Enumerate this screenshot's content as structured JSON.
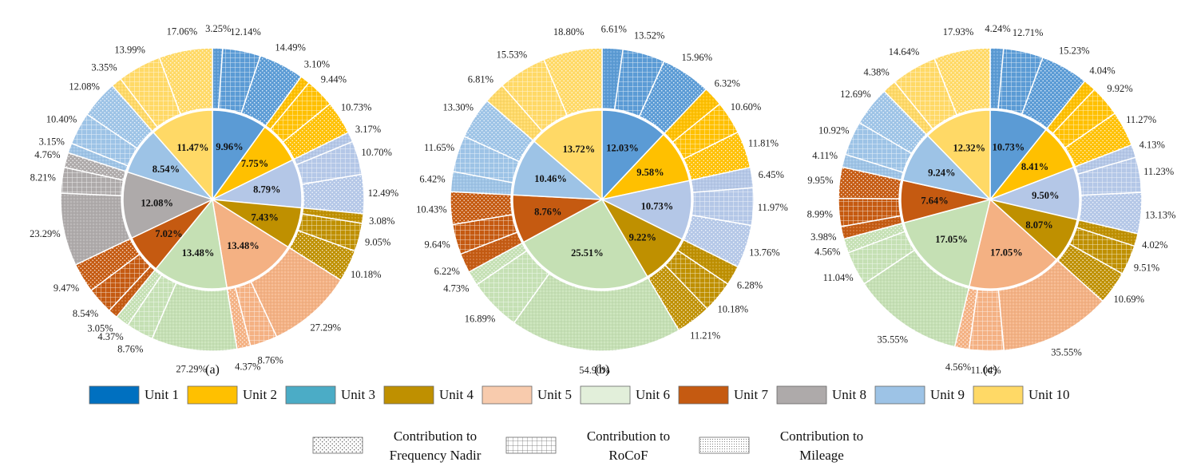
{
  "chart_data": [
    {
      "type": "pie",
      "panel_label": "(a)",
      "inner": [
        {
          "unit": "Unit 1",
          "value": 9.96,
          "label": "9.96%"
        },
        {
          "unit": "Unit 2",
          "value": 7.75,
          "label": "7.75%"
        },
        {
          "unit": "Unit 3",
          "value": 8.79,
          "label": "8.79%"
        },
        {
          "unit": "Unit 4",
          "value": 7.43,
          "label": "7.43%"
        },
        {
          "unit": "Unit 5",
          "value": 13.48,
          "label": "13.48%"
        },
        {
          "unit": "Unit 6",
          "value": 13.48,
          "label": "13.48%"
        },
        {
          "unit": "Unit 7",
          "value": 7.02,
          "label": "7.02%"
        },
        {
          "unit": "Unit 8",
          "value": 12.08,
          "label": "12.08%"
        },
        {
          "unit": "Unit 9",
          "value": 8.54,
          "label": "8.54%"
        },
        {
          "unit": "Unit 10",
          "value": 11.47,
          "label": "11.47%"
        }
      ],
      "outer": [
        {
          "unit": "Unit 1",
          "values": [
            3.25,
            12.14,
            14.49
          ],
          "labels": [
            "3.25%",
            "12.14%",
            "14.49%"
          ]
        },
        {
          "unit": "Unit 2",
          "values": [
            3.1,
            9.44,
            10.73
          ],
          "labels": [
            "3.10%",
            "9.44%",
            "10.73%"
          ]
        },
        {
          "unit": "Unit 3",
          "values": [
            3.17,
            10.7,
            12.49
          ],
          "labels": [
            "3.17%",
            "10.70%",
            "12.49%"
          ]
        },
        {
          "unit": "Unit 4",
          "values": [
            3.08,
            9.05,
            10.18
          ],
          "labels": [
            "3.08%",
            "9.05%",
            "10.18%"
          ]
        },
        {
          "unit": "Unit 5",
          "values": [
            27.29,
            8.76,
            4.37
          ],
          "labels": [
            "27.29%",
            "8.76%",
            "4.37%"
          ]
        },
        {
          "unit": "Unit 6",
          "values": [
            27.29,
            8.76,
            4.37
          ],
          "labels": [
            "27.29%",
            "8.76%",
            "4.37%"
          ]
        },
        {
          "unit": "Unit 7",
          "values": [
            3.05,
            8.54,
            9.47
          ],
          "labels": [
            "3.05%",
            "8.54%",
            "9.47%"
          ]
        },
        {
          "unit": "Unit 8",
          "values": [
            23.29,
            8.21,
            4.76
          ],
          "labels": [
            "23.29%",
            "8.21%",
            "4.76%"
          ]
        },
        {
          "unit": "Unit 9",
          "values": [
            3.15,
            10.4,
            12.08
          ],
          "labels": [
            "3.15%",
            "10.40%",
            "12.08%"
          ]
        },
        {
          "unit": "Unit 10",
          "values": [
            3.35,
            13.99,
            17.06
          ],
          "labels": [
            "3.35%",
            "13.99%",
            "17.06%"
          ]
        }
      ]
    },
    {
      "type": "pie",
      "panel_label": "(b)",
      "inner": [
        {
          "unit": "Unit 1",
          "value": 12.03,
          "label": "12.03%"
        },
        {
          "unit": "Unit 2",
          "value": 9.58,
          "label": "9.58%"
        },
        {
          "unit": "Unit 3",
          "value": 10.73,
          "label": "10.73%"
        },
        {
          "unit": "Unit 4",
          "value": 9.22,
          "label": "9.22%"
        },
        {
          "unit": "Unit 6",
          "value": 25.51,
          "label": "25.51%"
        },
        {
          "unit": "Unit 7",
          "value": 8.76,
          "label": "8.76%"
        },
        {
          "unit": "Unit 9",
          "value": 10.46,
          "label": "10.46%"
        },
        {
          "unit": "Unit 10",
          "value": 13.72,
          "label": "13.72%"
        }
      ],
      "outer": [
        {
          "unit": "Unit 1",
          "values": [
            6.61,
            13.52,
            15.96
          ],
          "labels": [
            "6.61%",
            "13.52%",
            "15.96%"
          ]
        },
        {
          "unit": "Unit 2",
          "values": [
            6.32,
            10.6,
            11.81
          ],
          "labels": [
            "6.32%",
            "10.60%",
            "11.81%"
          ]
        },
        {
          "unit": "Unit 3",
          "values": [
            6.45,
            11.97,
            13.76
          ],
          "labels": [
            "6.45%",
            "11.97%",
            "13.76%"
          ]
        },
        {
          "unit": "Unit 4",
          "values": [
            6.28,
            10.18,
            11.21
          ],
          "labels": [
            "6.28%",
            "10.18%",
            "11.21%"
          ]
        },
        {
          "unit": "Unit 6",
          "values": [
            54.9,
            16.89,
            4.73
          ],
          "labels": [
            "54.90%",
            "16.89%",
            "4.73%"
          ]
        },
        {
          "unit": "Unit 7",
          "values": [
            6.22,
            9.64,
            10.43
          ],
          "labels": [
            "6.22%",
            "9.64%",
            "10.43%"
          ]
        },
        {
          "unit": "Unit 9",
          "values": [
            6.42,
            11.65,
            13.3
          ],
          "labels": [
            "6.42%",
            "11.65%",
            "13.30%"
          ]
        },
        {
          "unit": "Unit 10",
          "values": [
            6.81,
            15.53,
            18.8
          ],
          "labels": [
            "6.81%",
            "15.53%",
            "18.80%"
          ]
        }
      ]
    },
    {
      "type": "pie",
      "panel_label": "(c)",
      "inner": [
        {
          "unit": "Unit 1",
          "value": 10.73,
          "label": "10.73%"
        },
        {
          "unit": "Unit 2",
          "value": 8.41,
          "label": "8.41%"
        },
        {
          "unit": "Unit 3",
          "value": 9.5,
          "label": "9.50%"
        },
        {
          "unit": "Unit 4",
          "value": 8.07,
          "label": "8.07%"
        },
        {
          "unit": "Unit 5",
          "value": 17.05,
          "label": "17.05%"
        },
        {
          "unit": "Unit 6",
          "value": 17.05,
          "label": "17.05%"
        },
        {
          "unit": "Unit 7",
          "value": 7.64,
          "label": "7.64%"
        },
        {
          "unit": "Unit 9",
          "value": 9.24,
          "label": "9.24%"
        },
        {
          "unit": "Unit 10",
          "value": 12.32,
          "label": "12.32%"
        }
      ],
      "outer": [
        {
          "unit": "Unit 1",
          "values": [
            4.24,
            12.71,
            15.23
          ],
          "labels": [
            "4.24%",
            "12.71%",
            "15.23%"
          ]
        },
        {
          "unit": "Unit 2",
          "values": [
            4.04,
            9.92,
            11.27
          ],
          "labels": [
            "4.04%",
            "9.92%",
            "11.27%"
          ]
        },
        {
          "unit": "Unit 3",
          "values": [
            4.13,
            11.23,
            13.13
          ],
          "labels": [
            "4.13%",
            "11.23%",
            "13.13%"
          ]
        },
        {
          "unit": "Unit 4",
          "values": [
            4.02,
            9.51,
            10.69
          ],
          "labels": [
            "4.02%",
            "9.51%",
            "10.69%"
          ]
        },
        {
          "unit": "Unit 5",
          "values": [
            35.55,
            11.04,
            4.56
          ],
          "labels": [
            "35.55%",
            "11.04%",
            "4.56%"
          ]
        },
        {
          "unit": "Unit 6",
          "values": [
            35.55,
            11.04,
            4.56
          ],
          "labels": [
            "35.55%",
            "11.04%",
            "4.56%"
          ]
        },
        {
          "unit": "Unit 7",
          "values": [
            3.98,
            8.99,
            9.95
          ],
          "labels": [
            "3.98%",
            "8.99%",
            "9.95%"
          ]
        },
        {
          "unit": "Unit 9",
          "values": [
            4.11,
            10.92,
            12.69
          ],
          "labels": [
            "4.11%",
            "10.92%",
            "12.69%"
          ]
        },
        {
          "unit": "Unit 10",
          "values": [
            4.38,
            14.64,
            17.93
          ],
          "labels": [
            "4.38%",
            "14.64%",
            "17.93%"
          ]
        }
      ]
    }
  ],
  "units": [
    {
      "name": "Unit 1",
      "color": "#5b9bd5"
    },
    {
      "name": "Unit 2",
      "color": "#ffc000"
    },
    {
      "name": "Unit 3",
      "color": "#b4c7e7"
    },
    {
      "name": "Unit 4",
      "color": "#bf9000"
    },
    {
      "name": "Unit 5",
      "color": "#f4b183"
    },
    {
      "name": "Unit 6",
      "color": "#c5e0b4"
    },
    {
      "name": "Unit 7",
      "color": "#c55a11"
    },
    {
      "name": "Unit 8",
      "color": "#aeaaaa"
    },
    {
      "name": "Unit 9",
      "color": "#9dc3e6"
    },
    {
      "name": "Unit 10",
      "color": "#ffd966"
    }
  ],
  "legend": {
    "units": [
      {
        "name": "Unit 1",
        "color": "#0070c0"
      },
      {
        "name": "Unit 2",
        "color": "#ffc000"
      },
      {
        "name": "Unit 3",
        "color": "#4bacc6"
      },
      {
        "name": "Unit 4",
        "color": "#bf9000"
      },
      {
        "name": "Unit 5",
        "color": "#f8cbad"
      },
      {
        "name": "Unit 6",
        "color": "#e2efda"
      },
      {
        "name": "Unit 7",
        "color": "#c55a11"
      },
      {
        "name": "Unit 8",
        "color": "#aeaaaa"
      },
      {
        "name": "Unit 9",
        "color": "#9dc3e6"
      },
      {
        "name": "Unit 10",
        "color": "#ffd966"
      }
    ],
    "patterns": [
      {
        "name": "Contribution to\nFrequency Nadir",
        "line1": "Contribution to",
        "line2": "Frequency Nadir",
        "pattern": "dots"
      },
      {
        "name": "Contribution to\nRoCoF",
        "line1": "Contribution to",
        "line2": "RoCoF",
        "pattern": "grid"
      },
      {
        "name": "Contribution to\nMileage",
        "line1": "Contribution to",
        "line2": "Mileage",
        "pattern": "fine-dots"
      }
    ]
  }
}
